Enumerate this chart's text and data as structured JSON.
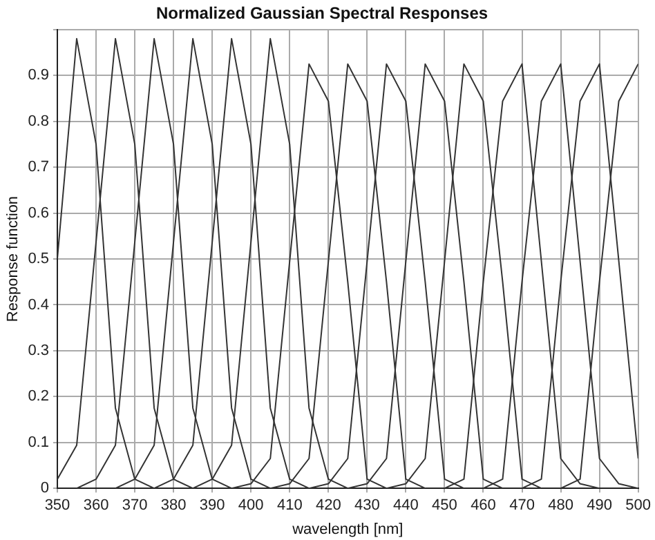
{
  "chart_data": {
    "type": "line",
    "title": "Normalized Gaussian Spectral Responses",
    "xlabel": "wavelength [nm]",
    "ylabel": "Response function",
    "xlim": [
      350,
      500
    ],
    "xticks": [
      350,
      360,
      370,
      380,
      390,
      400,
      410,
      420,
      430,
      440,
      450,
      460,
      470,
      480,
      490,
      500
    ],
    "ylim": [
      0,
      1
    ],
    "yticks": [
      0,
      0.1,
      0.2,
      0.3,
      0.4,
      0.5,
      0.6,
      0.7,
      0.8,
      0.9,
      {
        "value": 1,
        "label": null
      }
    ],
    "grid": true,
    "legend": false,
    "marker": "none",
    "line_style": "solid",
    "series": [
      {
        "color": "#333333",
        "x": [
          350,
          355,
          360,
          365,
          370,
          375
        ],
        "values": [
          0.5,
          0.98,
          0.75,
          0.175,
          0.02,
          0
        ]
      },
      {
        "color": "#333333",
        "x": [
          350,
          355,
          365,
          370,
          375,
          380,
          385
        ],
        "values": [
          0.02,
          0.094,
          0.98,
          0.75,
          0.175,
          0.02,
          0
        ]
      },
      {
        "color": "#333333",
        "x": [
          355,
          360,
          365,
          375,
          380,
          385,
          390,
          395
        ],
        "values": [
          0,
          0.02,
          0.094,
          0.98,
          0.75,
          0.175,
          0.02,
          0
        ]
      },
      {
        "color": "#333333",
        "x": [
          365,
          370,
          375,
          385,
          390,
          395,
          400,
          405
        ],
        "values": [
          0,
          0.02,
          0.094,
          0.98,
          0.75,
          0.175,
          0.02,
          0
        ]
      },
      {
        "color": "#333333",
        "x": [
          375,
          380,
          385,
          395,
          400,
          405,
          410,
          415
        ],
        "values": [
          0,
          0.02,
          0.094,
          0.98,
          0.75,
          0.175,
          0.02,
          0
        ]
      },
      {
        "color": "#333333",
        "x": [
          385,
          390,
          395,
          405,
          410,
          415,
          420,
          425
        ],
        "values": [
          0,
          0.02,
          0.094,
          0.98,
          0.75,
          0.175,
          0.02,
          0
        ]
      },
      {
        "color": "#333333",
        "x": [
          395,
          400,
          405,
          415,
          420,
          425,
          430,
          435
        ],
        "values": [
          0,
          0.01,
          0.065,
          0.925,
          0.844,
          0.45,
          0.02,
          0
        ]
      },
      {
        "color": "#333333",
        "x": [
          405,
          410,
          415,
          425,
          430,
          435,
          440,
          445
        ],
        "values": [
          0,
          0.01,
          0.065,
          0.925,
          0.844,
          0.45,
          0.02,
          0
        ]
      },
      {
        "color": "#333333",
        "x": [
          415,
          420,
          425,
          435,
          440,
          445,
          450,
          455
        ],
        "values": [
          0,
          0.01,
          0.065,
          0.925,
          0.844,
          0.45,
          0.02,
          0
        ]
      },
      {
        "color": "#333333",
        "x": [
          425,
          430,
          435,
          445,
          450,
          455,
          460,
          465
        ],
        "values": [
          0,
          0.01,
          0.065,
          0.925,
          0.844,
          0.45,
          0.02,
          0
        ]
      },
      {
        "color": "#333333",
        "x": [
          435,
          440,
          445,
          455,
          460,
          465,
          470,
          475
        ],
        "values": [
          0,
          0.01,
          0.065,
          0.925,
          0.844,
          0.45,
          0.02,
          0
        ]
      },
      {
        "color": "#333333",
        "x": [
          450,
          455,
          460,
          465,
          470,
          480,
          485,
          490
        ],
        "values": [
          0,
          0.02,
          0.45,
          0.844,
          0.925,
          0.065,
          0.01,
          0
        ]
      },
      {
        "color": "#333333",
        "x": [
          460,
          465,
          470,
          475,
          480,
          490,
          495,
          500
        ],
        "values": [
          0,
          0.02,
          0.45,
          0.844,
          0.925,
          0.065,
          0.01,
          0
        ]
      },
      {
        "color": "#333333",
        "x": [
          470,
          475,
          480,
          485,
          490,
          500
        ],
        "values": [
          0,
          0.02,
          0.45,
          0.844,
          0.925,
          0.065
        ]
      },
      {
        "color": "#333333",
        "x": [
          480,
          485,
          490,
          495,
          500
        ],
        "values": [
          0,
          0.02,
          0.45,
          0.844,
          0.925
        ]
      }
    ]
  }
}
